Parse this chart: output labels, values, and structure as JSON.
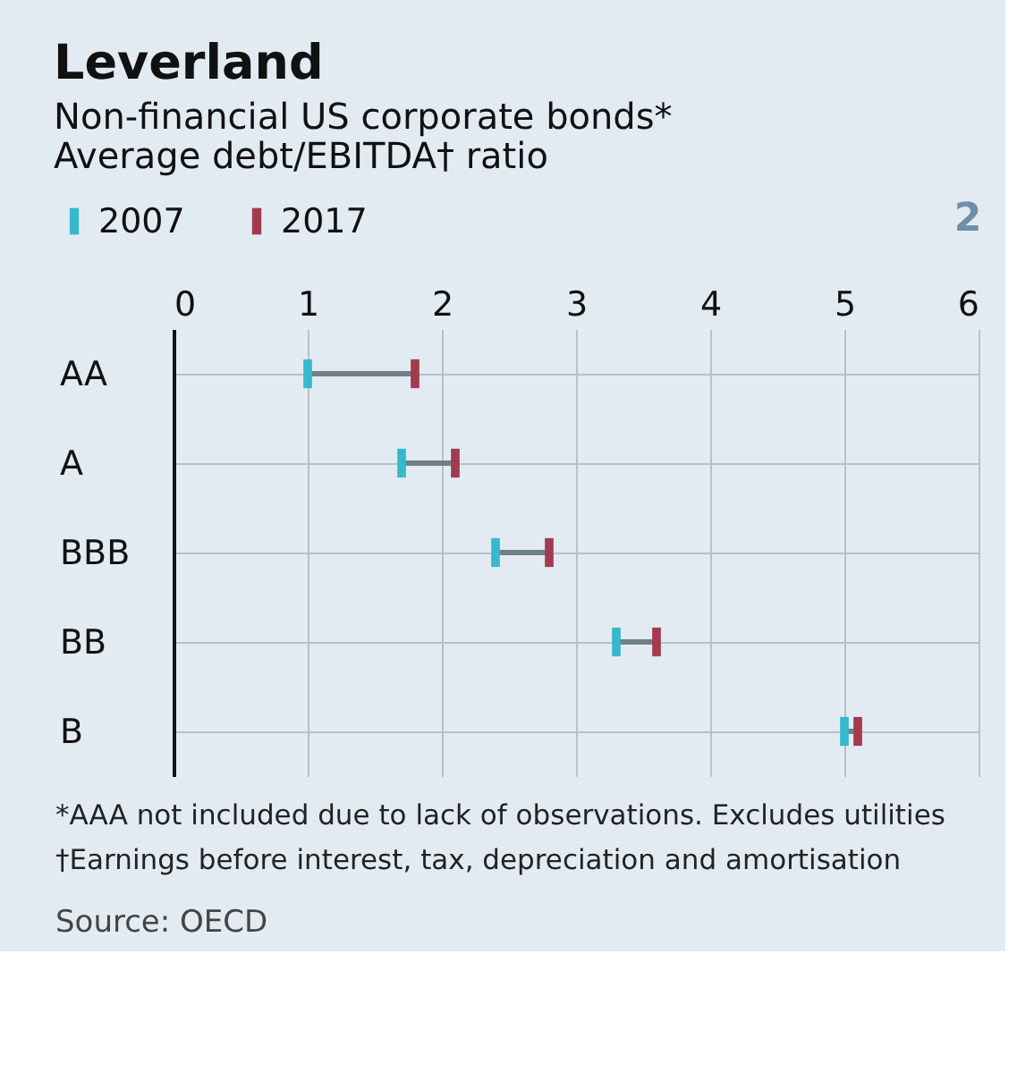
{
  "chart_data": {
    "type": "scatter",
    "orientation": "horizontal",
    "marker": "square",
    "title": "Leverland",
    "subtitle": [
      "Non-financial US corporate bonds*",
      "Average debt/EBITDA† ratio"
    ],
    "categories": [
      "AA",
      "A",
      "BBB",
      "BB",
      "B"
    ],
    "series": [
      {
        "name": "2007",
        "color": "#37b8cc",
        "values": [
          1.0,
          1.7,
          2.4,
          3.3,
          5.0
        ]
      },
      {
        "name": "2017",
        "color": "#a33a4e",
        "values": [
          1.8,
          2.1,
          2.8,
          3.6,
          5.1
        ]
      }
    ],
    "xlim": [
      0,
      6
    ],
    "xticks": [
      0,
      1,
      2,
      3,
      4,
      5,
      6
    ],
    "grid": true,
    "legend": "top left",
    "annotations": [
      "2",
      "*AAA not included due to lack of observations. Excludes utilities",
      "†Earnings before interest, tax, depreciation and amortisation",
      "Source: OECD"
    ]
  }
}
